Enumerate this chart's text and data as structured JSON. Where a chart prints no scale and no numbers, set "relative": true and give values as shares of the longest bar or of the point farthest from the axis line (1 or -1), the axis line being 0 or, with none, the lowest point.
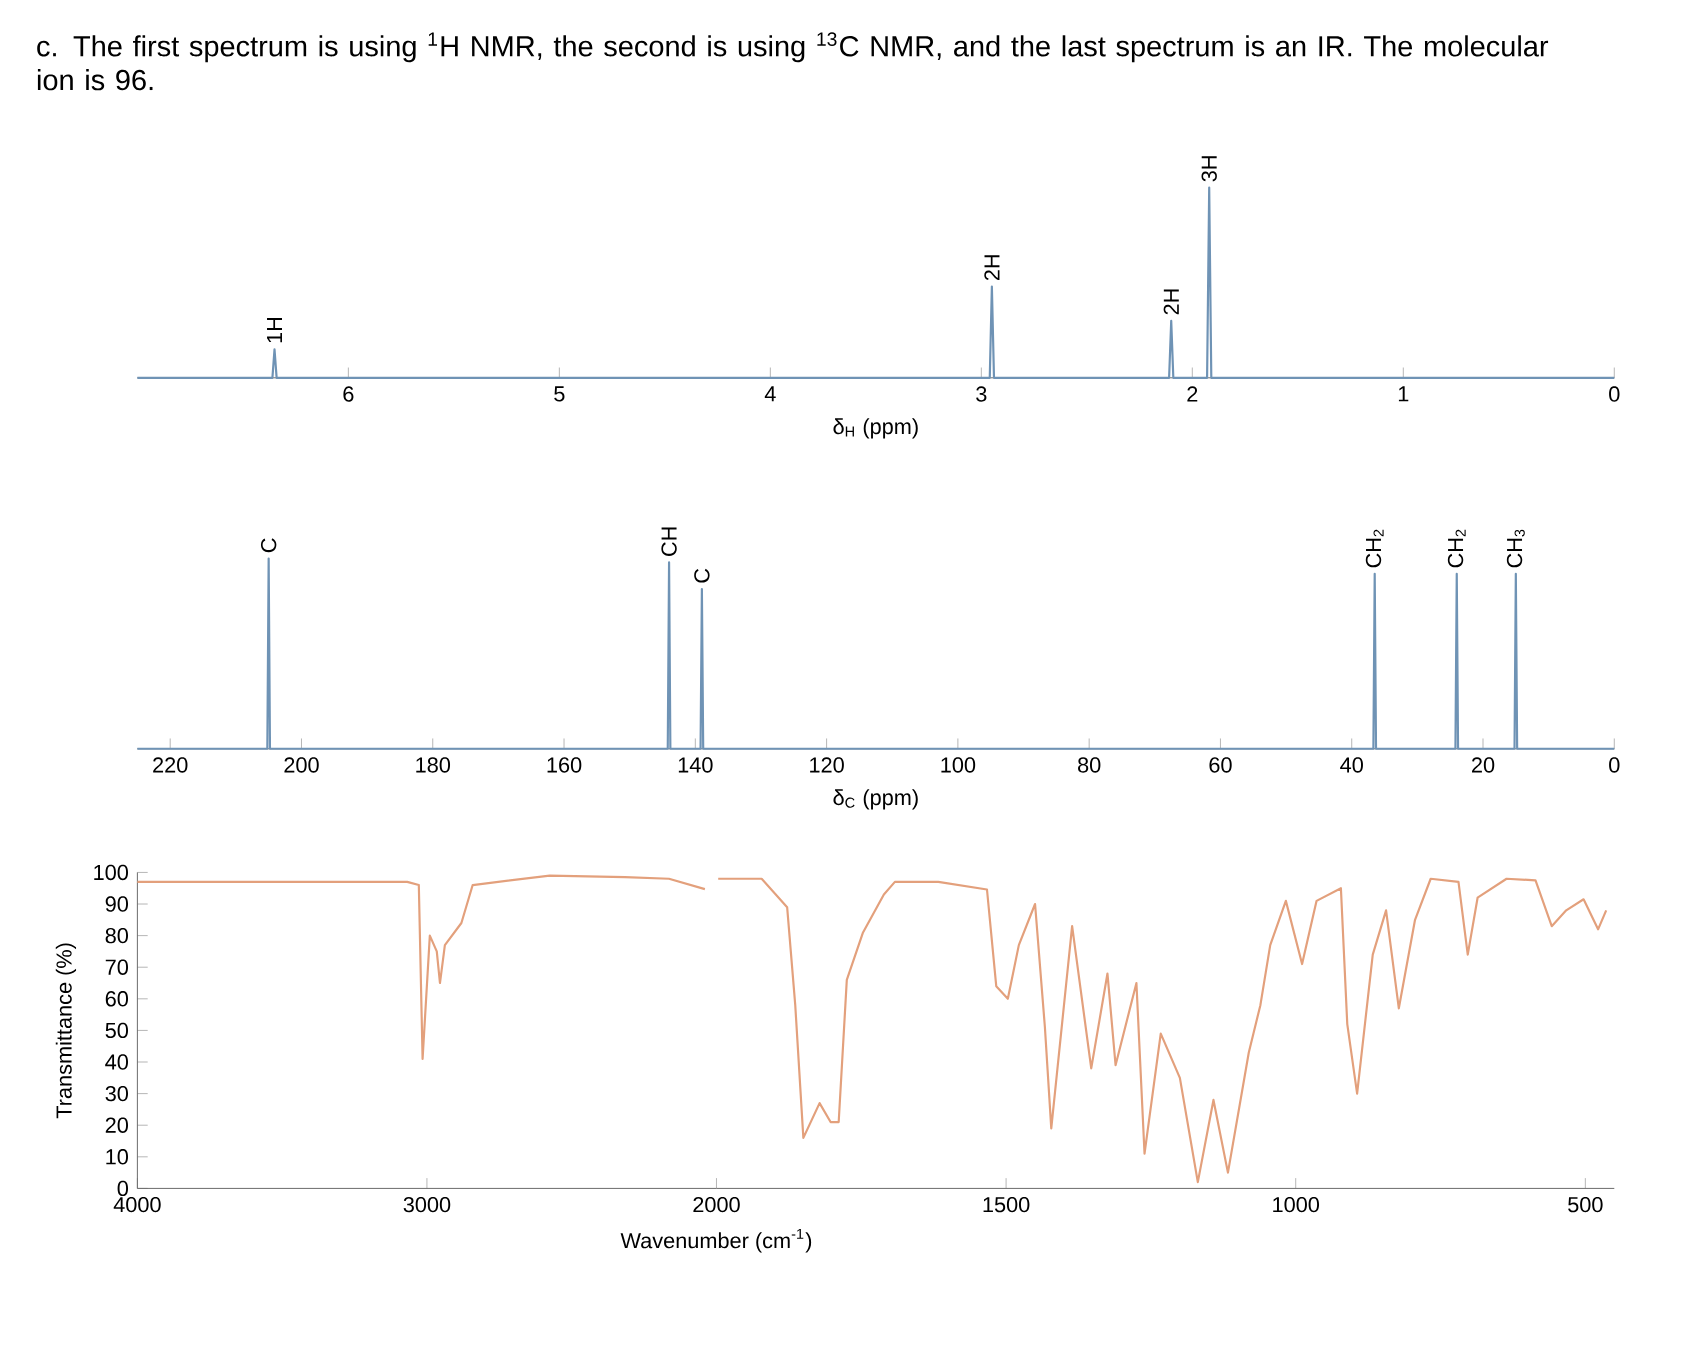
{
  "chart_data": [
    {
      "type": "line",
      "title": "c. The first spectrum is using $^{1}$H NMR, the second is using $^{13}$C NMR, and the last spectrum is an IR. The molecular ion is 96.",
      "xlabel": "δ$_{H}$ (ppm)",
      "relative": true,
      "color": "#6f93b5",
      "xlim": [
        7,
        0
      ],
      "xticks": [
        0,
        1,
        2,
        3,
        4,
        5,
        6
      ],
      "x": [
        7,
        6.36,
        6.35,
        6.34,
        2.96,
        2.95,
        2.94,
        2.11,
        2.1,
        2.09,
        1.93,
        1.92,
        1.91,
        0
      ],
      "values": [
        0,
        0,
        0.15,
        0,
        0,
        0.48,
        0,
        0,
        0.3,
        0,
        0,
        1,
        0,
        0
      ],
      "annotations": [
        {
          "text": "1H",
          "x": 6.35,
          "y": 0.15
        },
        {
          "text": "2H",
          "x": 2.95,
          "y": 0.48
        },
        {
          "text": "2H",
          "x": 2.1,
          "y": 0.3
        },
        {
          "text": "3H",
          "x": 1.92,
          "y": 1
        }
      ]
    },
    {
      "type": "line",
      "xlabel": "δ$_{C}$ (ppm)",
      "relative": true,
      "color": "#6f93b5",
      "xlim": [
        225,
        0
      ],
      "xticks": [
        0,
        20,
        40,
        60,
        80,
        100,
        120,
        140,
        160,
        180,
        200,
        220
      ],
      "x": [
        225,
        205.2,
        205,
        204.8,
        144.2,
        144,
        143.8,
        139.2,
        139,
        138.8,
        36.7,
        36.5,
        36.3,
        24.2,
        24,
        23.8,
        15.2,
        15,
        14.8,
        0
      ],
      "values": [
        0,
        0,
        1,
        0,
        0,
        0.98,
        0,
        0,
        0.84,
        0,
        0,
        0.92,
        0,
        0,
        0.92,
        0,
        0,
        0.92,
        0,
        0
      ],
      "annotations": [
        {
          "text": "C",
          "x": 205,
          "y": 1
        },
        {
          "text": "CH",
          "x": 144,
          "y": 0.98
        },
        {
          "text": "C",
          "x": 139,
          "y": 0.84
        },
        {
          "text": "CH$_{2}$",
          "x": 36.5,
          "y": 0.92
        },
        {
          "text": "CH$_{2}$",
          "x": 24,
          "y": 0.92
        },
        {
          "text": "CH$_{3}$",
          "x": 15,
          "y": 0.92
        }
      ]
    },
    {
      "type": "line",
      "ylabel": "Transmittance (%)",
      "color": "#e3a07c",
      "xlim": [
        4000,
        2000
      ],
      "xticks": [
        4000,
        3000,
        2000
      ],
      "ylim": [
        0,
        100
      ],
      "yticks": [
        0,
        10,
        20,
        30,
        40,
        50,
        60,
        70,
        80,
        90,
        100
      ],
      "x": [
        4000,
        3576,
        3068,
        3028,
        3015,
        2990,
        2966,
        2955,
        2938,
        2881,
        2842,
        2576,
        2316,
        2164,
        2040
      ],
      "values": [
        97,
        97,
        97,
        96,
        41,
        80,
        75,
        65,
        77,
        84,
        96,
        99,
        98.5,
        98,
        94.7
      ]
    },
    {
      "type": "line",
      "xlabel": "Wavenumber (cm$^{-1}$)",
      "color": "#e3a07c",
      "xlim": [
        2000,
        450
      ],
      "xticks": [
        1500,
        1000,
        500
      ],
      "ylim": [
        0,
        100
      ],
      "tick_labels": "x",
      "x": [
        1997,
        1922,
        1878,
        1864,
        1850,
        1822,
        1803,
        1789,
        1775,
        1747,
        1711,
        1692,
        1617,
        1533,
        1517,
        1497,
        1478,
        1450,
        1433,
        1422,
        1386,
        1353,
        1325,
        1311,
        1275,
        1261,
        1233,
        1200,
        1169,
        1142,
        1117,
        1081,
        1061,
        1044,
        1017,
        989,
        964,
        922,
        911,
        894,
        867,
        844,
        822,
        794,
        767,
        719,
        703,
        686,
        636,
        586,
        558,
        533,
        503,
        478,
        464
      ],
      "values": [
        98,
        98,
        89,
        58,
        16,
        27,
        21,
        21,
        66,
        81,
        93,
        97,
        97,
        94.6,
        64,
        60,
        77,
        90,
        51,
        19,
        83,
        38,
        68,
        39,
        65,
        11,
        49,
        35,
        2,
        28,
        5,
        43,
        58,
        77,
        91,
        71,
        91,
        95,
        52,
        30,
        74,
        88,
        57,
        85,
        98,
        97,
        74,
        92,
        98,
        97.5,
        83,
        88,
        91.5,
        82,
        88
      ]
    }
  ]
}
